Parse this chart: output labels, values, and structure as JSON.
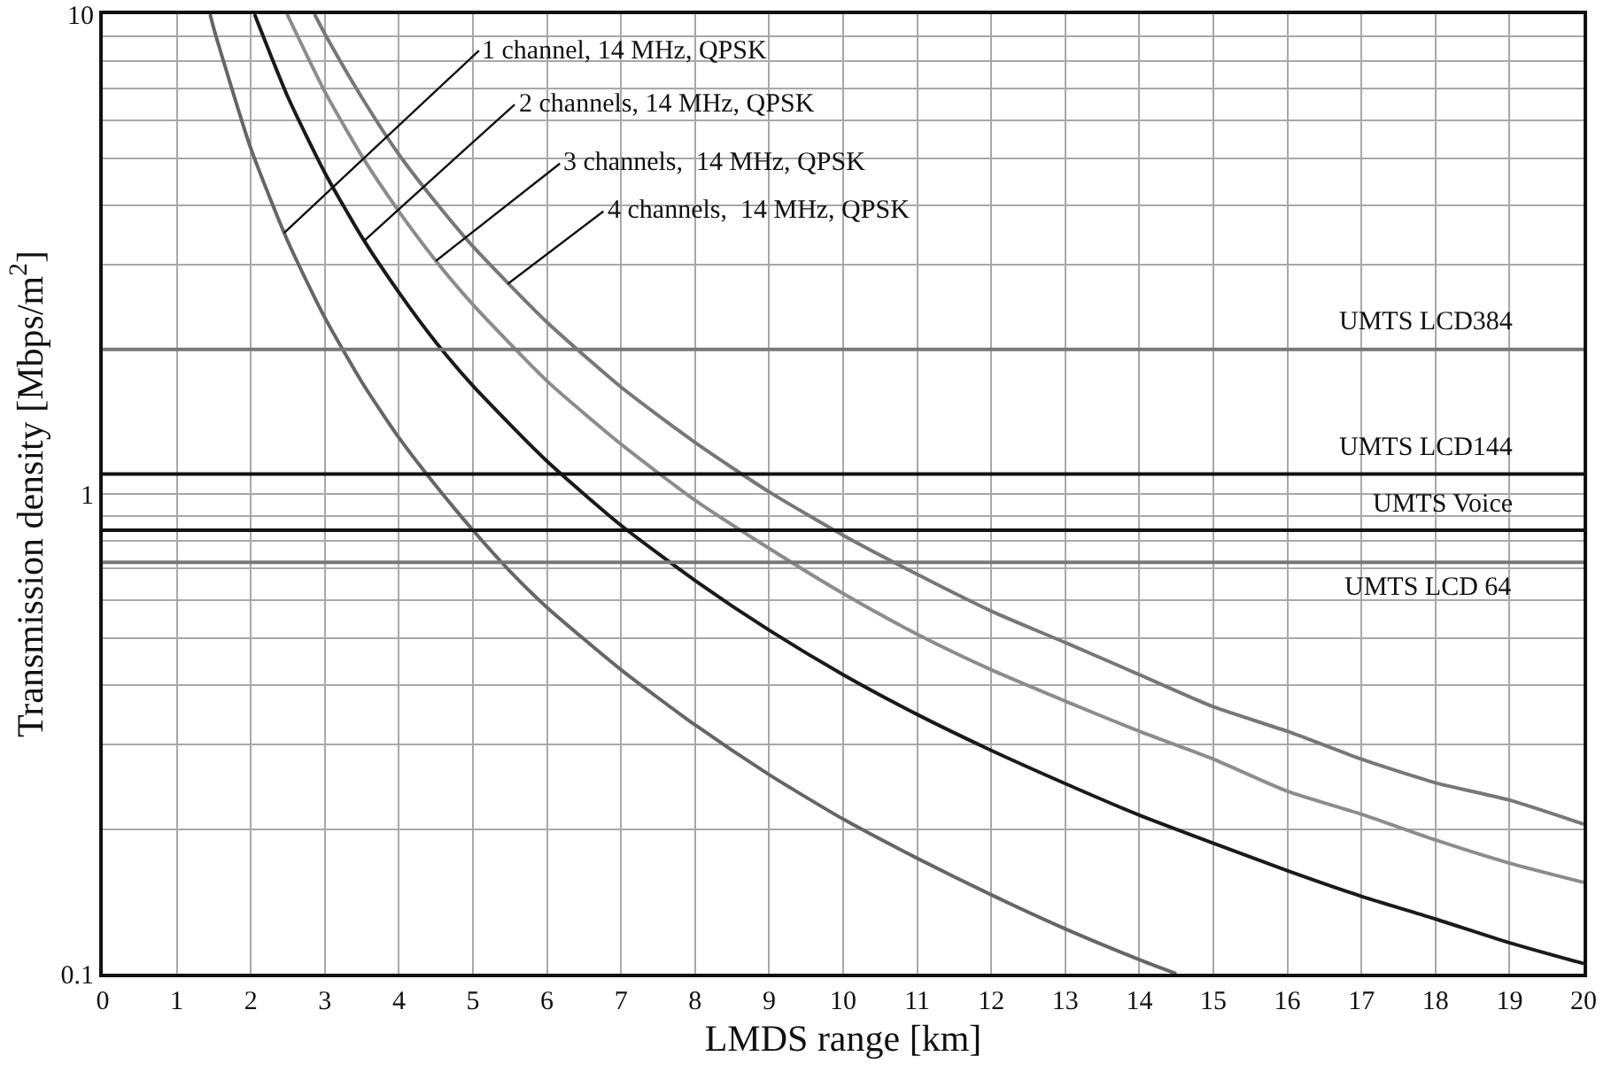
{
  "chart_data": {
    "type": "line",
    "xlabel": "LMDS range [km]",
    "ylabel": "Transmission density [Mbps/m$^{2}$]",
    "log": "y",
    "grid": true,
    "marker": "none",
    "line_style": "solid",
    "xlim": [
      0,
      20
    ],
    "xticks": [
      0,
      1,
      2,
      3,
      4,
      5,
      6,
      7,
      8,
      9,
      10,
      11,
      12,
      13,
      14,
      15,
      16,
      17,
      18,
      19,
      20
    ],
    "ylim": [
      0.1,
      10
    ],
    "yticks": [
      0.1,
      {
        "value": 0.2,
        "label": null
      },
      {
        "value": 0.3,
        "label": null
      },
      {
        "value": 0.4,
        "label": null
      },
      {
        "value": 0.5,
        "label": null
      },
      {
        "value": 0.6,
        "label": null
      },
      {
        "value": 0.7,
        "label": null
      },
      {
        "value": 0.8,
        "label": null
      },
      {
        "value": 0.9,
        "label": null
      },
      1,
      {
        "value": 2,
        "label": null
      },
      {
        "value": 3,
        "label": null
      },
      {
        "value": 4,
        "label": null
      },
      {
        "value": 5,
        "label": null
      },
      {
        "value": 6,
        "label": null
      },
      {
        "value": 7,
        "label": null
      },
      {
        "value": 8,
        "label": null
      },
      {
        "value": 9,
        "label": null
      },
      10
    ],
    "series": [
      {
        "color": "#666666",
        "x": [
          1.45,
          1.5,
          2,
          2.5,
          3,
          3.5,
          4,
          4.5,
          5,
          5.5,
          6,
          7,
          8,
          9,
          10,
          11,
          12,
          13,
          14,
          14.5
        ],
        "values": [
          10,
          9.33,
          5.25,
          3.36,
          2.33,
          1.71,
          1.31,
          1.04,
          0.84,
          0.69,
          0.58,
          0.43,
          0.33,
          0.26,
          0.21,
          0.174,
          0.146,
          0.124,
          0.107,
          0.1
        ]
      },
      {
        "color": "#1a1a1a",
        "x": [
          2.05,
          2.5,
          3,
          3.5,
          4,
          4.5,
          5,
          6,
          7,
          8,
          9,
          10,
          11,
          12,
          13,
          14,
          15,
          16,
          17,
          18,
          19,
          20
        ],
        "values": [
          10,
          6.72,
          4.67,
          3.43,
          2.63,
          2.07,
          1.68,
          1.17,
          0.86,
          0.66,
          0.52,
          0.42,
          0.347,
          0.292,
          0.249,
          0.214,
          0.187,
          0.164,
          0.145,
          0.13,
          0.116,
          0.105
        ]
      },
      {
        "color": "#8c8c8c",
        "x": [
          2.49,
          3,
          3.5,
          4,
          4.5,
          5,
          6,
          7,
          8,
          9,
          10,
          11,
          12,
          13,
          14,
          15,
          16,
          17,
          18,
          19,
          20
        ],
        "values": [
          10,
          6.89,
          5.06,
          3.88,
          3.06,
          2.48,
          1.72,
          1.27,
          0.97,
          0.77,
          0.62,
          0.51,
          0.43,
          0.37,
          0.32,
          0.28,
          0.24,
          0.215,
          0.19,
          0.17,
          0.155
        ]
      },
      {
        "color": "#777777",
        "x": [
          2.86,
          3,
          3.5,
          4,
          4.5,
          5,
          6,
          7,
          8,
          9,
          10,
          11,
          12,
          13,
          14,
          15,
          16,
          17,
          18,
          19,
          20
        ],
        "values": [
          10,
          9.1,
          6.7,
          5.1,
          4.05,
          3.28,
          2.28,
          1.67,
          1.28,
          1.01,
          0.82,
          0.68,
          0.57,
          0.49,
          0.42,
          0.36,
          0.32,
          0.28,
          0.25,
          0.23,
          0.205
        ]
      }
    ],
    "ref_lines": [
      {
        "axis": "y",
        "value": 2,
        "label": "UMTS LCD384",
        "color": "#777777"
      },
      {
        "axis": "y",
        "value": 1.1,
        "label": "UMTS LCD144",
        "color": "#111111"
      },
      {
        "axis": "y",
        "value": 0.84,
        "label": "UMTS Voice",
        "color": "#111111"
      },
      {
        "axis": "y",
        "value": 0.72,
        "label": "UMTS LCD 64",
        "color": "#777777"
      }
    ],
    "annotations": [
      {
        "text": "1 channel, 14 MHz, QPSK",
        "x": 2.45,
        "y": 3.5
      },
      {
        "text": "2 channels, 14 MHz, QPSK",
        "x": 3.53,
        "y": 3.37
      },
      {
        "text": "3 channels,  14 MHz, QPSK",
        "x": 4.5,
        "y": 3.06
      },
      {
        "text": "4 channels,  14 MHz, QPSK",
        "x": 5.47,
        "y": 2.74
      }
    ]
  }
}
